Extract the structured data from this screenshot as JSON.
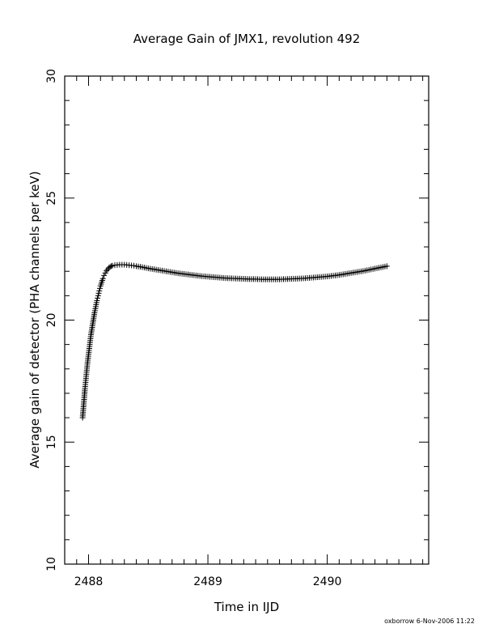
{
  "chart_data": {
    "type": "scatter",
    "title": "Average Gain of JMX1, revolution 492",
    "xlabel": "Time in IJD",
    "ylabel": "Average gain of detector (PHA channels per keV)",
    "xlim": [
      2487.8,
      2490.85
    ],
    "ylim": [
      10,
      30
    ],
    "x_ticks": [
      2488,
      2489,
      2490
    ],
    "x_tick_labels": [
      "2488",
      "2489",
      "2490"
    ],
    "y_ticks": [
      10,
      15,
      20,
      25,
      30
    ],
    "y_tick_labels": [
      "10",
      "15",
      "20",
      "25",
      "30"
    ],
    "marker": "plus",
    "grid": false,
    "legend": "none",
    "series": [
      {
        "points": [
          [
            2487.95,
            16.0
          ],
          [
            2487.96,
            16.6
          ],
          [
            2487.97,
            17.2
          ],
          [
            2487.98,
            17.7
          ],
          [
            2487.99,
            18.2
          ],
          [
            2488.0,
            18.6
          ],
          [
            2488.01,
            19.0
          ],
          [
            2488.02,
            19.4
          ],
          [
            2488.03,
            19.7
          ],
          [
            2488.04,
            20.0
          ],
          [
            2488.05,
            20.3
          ],
          [
            2488.06,
            20.55
          ],
          [
            2488.07,
            20.8
          ],
          [
            2488.08,
            21.0
          ],
          [
            2488.09,
            21.2
          ],
          [
            2488.1,
            21.4
          ],
          [
            2488.11,
            21.55
          ],
          [
            2488.12,
            21.7
          ],
          [
            2488.13,
            21.83
          ],
          [
            2488.14,
            21.93
          ],
          [
            2488.15,
            22.02
          ],
          [
            2488.16,
            22.08
          ],
          [
            2488.17,
            22.14
          ],
          [
            2488.18,
            22.18
          ],
          [
            2488.19,
            22.21
          ],
          [
            2488.2,
            22.23
          ],
          [
            2488.22,
            22.25
          ],
          [
            2488.24,
            22.26
          ],
          [
            2488.26,
            22.27
          ],
          [
            2488.28,
            22.27
          ],
          [
            2488.3,
            22.27
          ],
          [
            2488.32,
            22.26
          ],
          [
            2488.34,
            22.25
          ],
          [
            2488.36,
            22.24
          ],
          [
            2488.38,
            22.23
          ],
          [
            2488.4,
            22.21
          ],
          [
            2488.45,
            22.17
          ],
          [
            2488.5,
            22.12
          ],
          [
            2488.55,
            22.08
          ],
          [
            2488.6,
            22.04
          ],
          [
            2488.65,
            22.0
          ],
          [
            2488.7,
            21.96
          ],
          [
            2488.75,
            21.92
          ],
          [
            2488.8,
            21.89
          ],
          [
            2488.85,
            21.86
          ],
          [
            2488.9,
            21.83
          ],
          [
            2488.95,
            21.8
          ],
          [
            2489.0,
            21.78
          ],
          [
            2489.05,
            21.76
          ],
          [
            2489.1,
            21.74
          ],
          [
            2489.15,
            21.72
          ],
          [
            2489.2,
            21.71
          ],
          [
            2489.25,
            21.7
          ],
          [
            2489.3,
            21.69
          ],
          [
            2489.35,
            21.68
          ],
          [
            2489.4,
            21.68
          ],
          [
            2489.45,
            21.67
          ],
          [
            2489.5,
            21.67
          ],
          [
            2489.55,
            21.67
          ],
          [
            2489.6,
            21.67
          ],
          [
            2489.65,
            21.68
          ],
          [
            2489.7,
            21.69
          ],
          [
            2489.75,
            21.7
          ],
          [
            2489.8,
            21.71
          ],
          [
            2489.85,
            21.73
          ],
          [
            2489.9,
            21.75
          ],
          [
            2489.95,
            21.77
          ],
          [
            2490.0,
            21.79
          ],
          [
            2490.05,
            21.82
          ],
          [
            2490.1,
            21.85
          ],
          [
            2490.15,
            21.89
          ],
          [
            2490.2,
            21.93
          ],
          [
            2490.25,
            21.97
          ],
          [
            2490.3,
            22.01
          ],
          [
            2490.35,
            22.06
          ],
          [
            2490.4,
            22.11
          ],
          [
            2490.45,
            22.16
          ],
          [
            2490.5,
            22.21
          ]
        ]
      }
    ]
  },
  "footer": {
    "text": "oxborrow   6-Nov-2006 11:22"
  }
}
